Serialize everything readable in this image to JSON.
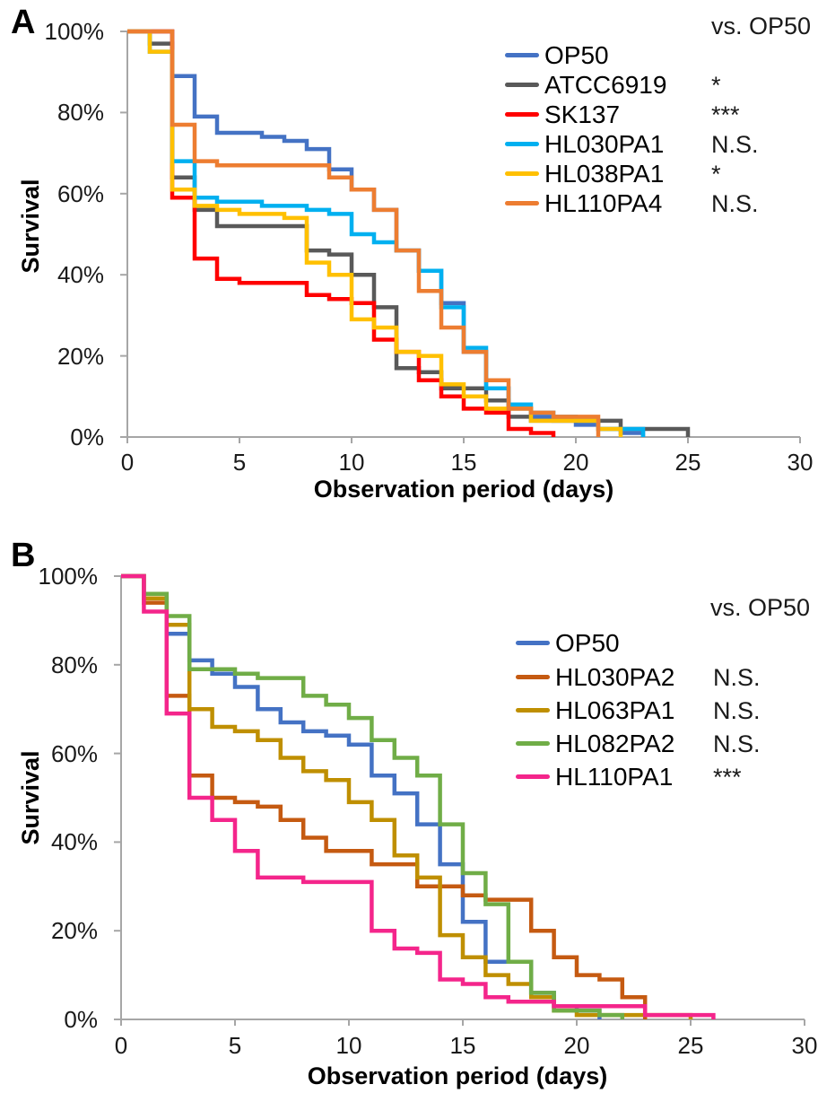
{
  "chart_data": [
    {
      "type": "line",
      "subtype": "survival-step",
      "panel_label": "A",
      "xlabel": "Observation period (days)",
      "ylabel": "Survival",
      "legend_header": "vs. OP50",
      "legend_position": "upper-right",
      "grid": false,
      "xlim": [
        0,
        30
      ],
      "ylim": [
        0,
        100
      ],
      "x_ticks": [
        0,
        5,
        10,
        15,
        20,
        25,
        30
      ],
      "y_tick_labels": [
        "100%",
        "80%",
        "60%",
        "40%",
        "20%",
        "0%"
      ],
      "y_tick_values": [
        100,
        80,
        60,
        40,
        20,
        0
      ],
      "series": [
        {
          "name": "OP50",
          "color": "#4472C4",
          "significance": "",
          "points": [
            [
              0,
              100
            ],
            [
              1,
              100
            ],
            [
              2,
              89
            ],
            [
              3,
              79
            ],
            [
              4,
              75
            ],
            [
              5,
              75
            ],
            [
              6,
              74
            ],
            [
              7,
              73
            ],
            [
              8,
              71
            ],
            [
              9,
              66
            ],
            [
              10,
              61
            ],
            [
              11,
              56
            ],
            [
              12,
              46
            ],
            [
              13,
              41
            ],
            [
              14,
              33
            ],
            [
              15,
              21
            ],
            [
              16,
              12
            ],
            [
              17,
              7
            ],
            [
              18,
              5
            ],
            [
              19,
              4
            ],
            [
              20,
              3
            ],
            [
              21,
              2
            ],
            [
              22,
              1
            ],
            [
              23,
              0
            ]
          ]
        },
        {
          "name": "ATCC6919",
          "color": "#595959",
          "significance": "*",
          "points": [
            [
              0,
              100
            ],
            [
              1,
              97
            ],
            [
              2,
              64
            ],
            [
              3,
              56
            ],
            [
              4,
              52
            ],
            [
              5,
              52
            ],
            [
              6,
              52
            ],
            [
              7,
              52
            ],
            [
              8,
              46
            ],
            [
              9,
              45
            ],
            [
              10,
              40
            ],
            [
              11,
              32
            ],
            [
              12,
              17
            ],
            [
              13,
              16
            ],
            [
              14,
              12
            ],
            [
              15,
              12
            ],
            [
              16,
              9
            ],
            [
              17,
              5
            ],
            [
              18,
              4
            ],
            [
              19,
              4
            ],
            [
              20,
              4
            ],
            [
              21,
              4
            ],
            [
              22,
              2
            ],
            [
              23,
              2
            ],
            [
              24,
              2
            ],
            [
              25,
              0
            ]
          ]
        },
        {
          "name": "SK137",
          "color": "#FF0000",
          "significance": "***",
          "points": [
            [
              0,
              100
            ],
            [
              1,
              100
            ],
            [
              2,
              59
            ],
            [
              3,
              44
            ],
            [
              4,
              39
            ],
            [
              5,
              38
            ],
            [
              6,
              38
            ],
            [
              7,
              38
            ],
            [
              8,
              35
            ],
            [
              9,
              34
            ],
            [
              10,
              33
            ],
            [
              11,
              24
            ],
            [
              12,
              21
            ],
            [
              13,
              14
            ],
            [
              14,
              10
            ],
            [
              15,
              7
            ],
            [
              16,
              6
            ],
            [
              17,
              2
            ],
            [
              18,
              1
            ],
            [
              19,
              0
            ]
          ]
        },
        {
          "name": "HL030PA1",
          "color": "#00B0F0",
          "significance": "N.S.",
          "points": [
            [
              0,
              100
            ],
            [
              1,
              95
            ],
            [
              2,
              68
            ],
            [
              3,
              59
            ],
            [
              4,
              58
            ],
            [
              5,
              58
            ],
            [
              6,
              57
            ],
            [
              7,
              57
            ],
            [
              8,
              56
            ],
            [
              9,
              55
            ],
            [
              10,
              50
            ],
            [
              11,
              48
            ],
            [
              12,
              46
            ],
            [
              13,
              41
            ],
            [
              14,
              32
            ],
            [
              15,
              22
            ],
            [
              16,
              12
            ],
            [
              17,
              8
            ],
            [
              18,
              6
            ],
            [
              19,
              5
            ],
            [
              20,
              4
            ],
            [
              21,
              2
            ],
            [
              22,
              2
            ],
            [
              23,
              0
            ]
          ]
        },
        {
          "name": "HL038PA1",
          "color": "#FFC000",
          "significance": "*",
          "points": [
            [
              0,
              100
            ],
            [
              1,
              95
            ],
            [
              2,
              61
            ],
            [
              3,
              57
            ],
            [
              4,
              56
            ],
            [
              5,
              55
            ],
            [
              6,
              55
            ],
            [
              7,
              54
            ],
            [
              8,
              43
            ],
            [
              9,
              40
            ],
            [
              10,
              29
            ],
            [
              11,
              27
            ],
            [
              12,
              21
            ],
            [
              13,
              20
            ],
            [
              14,
              13
            ],
            [
              15,
              10
            ],
            [
              16,
              7
            ],
            [
              17,
              7
            ],
            [
              18,
              4
            ],
            [
              19,
              4
            ],
            [
              20,
              4
            ],
            [
              21,
              2
            ],
            [
              22,
              0
            ]
          ]
        },
        {
          "name": "HL110PA4",
          "color": "#ED7D31",
          "significance": "N.S.",
          "points": [
            [
              0,
              100
            ],
            [
              1,
              100
            ],
            [
              2,
              77
            ],
            [
              3,
              68
            ],
            [
              4,
              67
            ],
            [
              5,
              67
            ],
            [
              6,
              67
            ],
            [
              7,
              67
            ],
            [
              8,
              67
            ],
            [
              9,
              64
            ],
            [
              10,
              61
            ],
            [
              11,
              56
            ],
            [
              12,
              46
            ],
            [
              13,
              36
            ],
            [
              14,
              27
            ],
            [
              15,
              21
            ],
            [
              16,
              14
            ],
            [
              17,
              7
            ],
            [
              18,
              6
            ],
            [
              19,
              5
            ],
            [
              20,
              5
            ],
            [
              21,
              0
            ]
          ]
        }
      ]
    },
    {
      "type": "line",
      "subtype": "survival-step",
      "panel_label": "B",
      "xlabel": "Observation period (days)",
      "ylabel": "Survival",
      "legend_header": "vs. OP50",
      "legend_position": "upper-right",
      "grid": false,
      "xlim": [
        0,
        30
      ],
      "ylim": [
        0,
        100
      ],
      "x_ticks": [
        0,
        5,
        10,
        15,
        20,
        25,
        30
      ],
      "y_tick_labels": [
        "100%",
        "80%",
        "60%",
        "40%",
        "20%",
        "0%"
      ],
      "y_tick_values": [
        100,
        80,
        60,
        40,
        20,
        0
      ],
      "series": [
        {
          "name": "OP50",
          "color": "#4472C4",
          "significance": "",
          "points": [
            [
              0,
              100
            ],
            [
              1,
              96
            ],
            [
              2,
              87
            ],
            [
              3,
              81
            ],
            [
              4,
              78
            ],
            [
              5,
              75
            ],
            [
              6,
              70
            ],
            [
              7,
              67
            ],
            [
              8,
              65
            ],
            [
              9,
              64
            ],
            [
              10,
              62
            ],
            [
              11,
              55
            ],
            [
              12,
              51
            ],
            [
              13,
              44
            ],
            [
              14,
              35
            ],
            [
              15,
              22
            ],
            [
              16,
              13
            ],
            [
              17,
              13
            ],
            [
              18,
              6
            ],
            [
              19,
              3
            ],
            [
              20,
              2
            ],
            [
              21,
              0
            ]
          ]
        },
        {
          "name": "HL030PA2",
          "color": "#C55A11",
          "significance": "N.S.",
          "points": [
            [
              0,
              100
            ],
            [
              1,
              94
            ],
            [
              2,
              73
            ],
            [
              3,
              55
            ],
            [
              4,
              50
            ],
            [
              5,
              49
            ],
            [
              6,
              48
            ],
            [
              7,
              45
            ],
            [
              8,
              41
            ],
            [
              9,
              38
            ],
            [
              10,
              38
            ],
            [
              11,
              35
            ],
            [
              12,
              35
            ],
            [
              13,
              30
            ],
            [
              14,
              30
            ],
            [
              15,
              28
            ],
            [
              16,
              27
            ],
            [
              17,
              27
            ],
            [
              18,
              20
            ],
            [
              19,
              14
            ],
            [
              20,
              10
            ],
            [
              21,
              9
            ],
            [
              22,
              5
            ],
            [
              23,
              0
            ]
          ]
        },
        {
          "name": "HL063PA1",
          "color": "#BF8F00",
          "significance": "N.S.",
          "points": [
            [
              0,
              100
            ],
            [
              1,
              95
            ],
            [
              2,
              89
            ],
            [
              3,
              70
            ],
            [
              4,
              66
            ],
            [
              5,
              65
            ],
            [
              6,
              63
            ],
            [
              7,
              59
            ],
            [
              8,
              56
            ],
            [
              9,
              54
            ],
            [
              10,
              49
            ],
            [
              11,
              45
            ],
            [
              12,
              37
            ],
            [
              13,
              32
            ],
            [
              14,
              19
            ],
            [
              15,
              14
            ],
            [
              16,
              10
            ],
            [
              17,
              8
            ],
            [
              18,
              5
            ],
            [
              19,
              2
            ],
            [
              20,
              1
            ],
            [
              21,
              1
            ],
            [
              22,
              1
            ],
            [
              23,
              1
            ],
            [
              24,
              1
            ],
            [
              25,
              0
            ]
          ]
        },
        {
          "name": "HL082PA2",
          "color": "#70AD47",
          "significance": "N.S.",
          "points": [
            [
              0,
              100
            ],
            [
              1,
              96
            ],
            [
              2,
              91
            ],
            [
              3,
              79
            ],
            [
              4,
              79
            ],
            [
              5,
              78
            ],
            [
              6,
              77
            ],
            [
              7,
              77
            ],
            [
              8,
              73
            ],
            [
              9,
              71
            ],
            [
              10,
              68
            ],
            [
              11,
              63
            ],
            [
              12,
              59
            ],
            [
              13,
              55
            ],
            [
              14,
              44
            ],
            [
              15,
              33
            ],
            [
              16,
              26
            ],
            [
              17,
              13
            ],
            [
              18,
              6
            ],
            [
              19,
              2
            ],
            [
              20,
              2
            ],
            [
              21,
              1
            ],
            [
              22,
              0
            ]
          ]
        },
        {
          "name": "HL110PA1",
          "color": "#F4258B",
          "significance": "***",
          "points": [
            [
              0,
              100
            ],
            [
              1,
              92
            ],
            [
              2,
              69
            ],
            [
              3,
              50
            ],
            [
              4,
              45
            ],
            [
              5,
              38
            ],
            [
              6,
              32
            ],
            [
              7,
              32
            ],
            [
              8,
              31
            ],
            [
              9,
              31
            ],
            [
              10,
              31
            ],
            [
              11,
              20
            ],
            [
              12,
              16
            ],
            [
              13,
              15
            ],
            [
              14,
              9
            ],
            [
              15,
              8
            ],
            [
              16,
              5
            ],
            [
              17,
              4
            ],
            [
              18,
              4
            ],
            [
              19,
              3
            ],
            [
              20,
              3
            ],
            [
              21,
              3
            ],
            [
              22,
              3
            ],
            [
              23,
              1
            ],
            [
              24,
              1
            ],
            [
              25,
              1
            ],
            [
              26,
              0
            ]
          ]
        }
      ]
    }
  ]
}
